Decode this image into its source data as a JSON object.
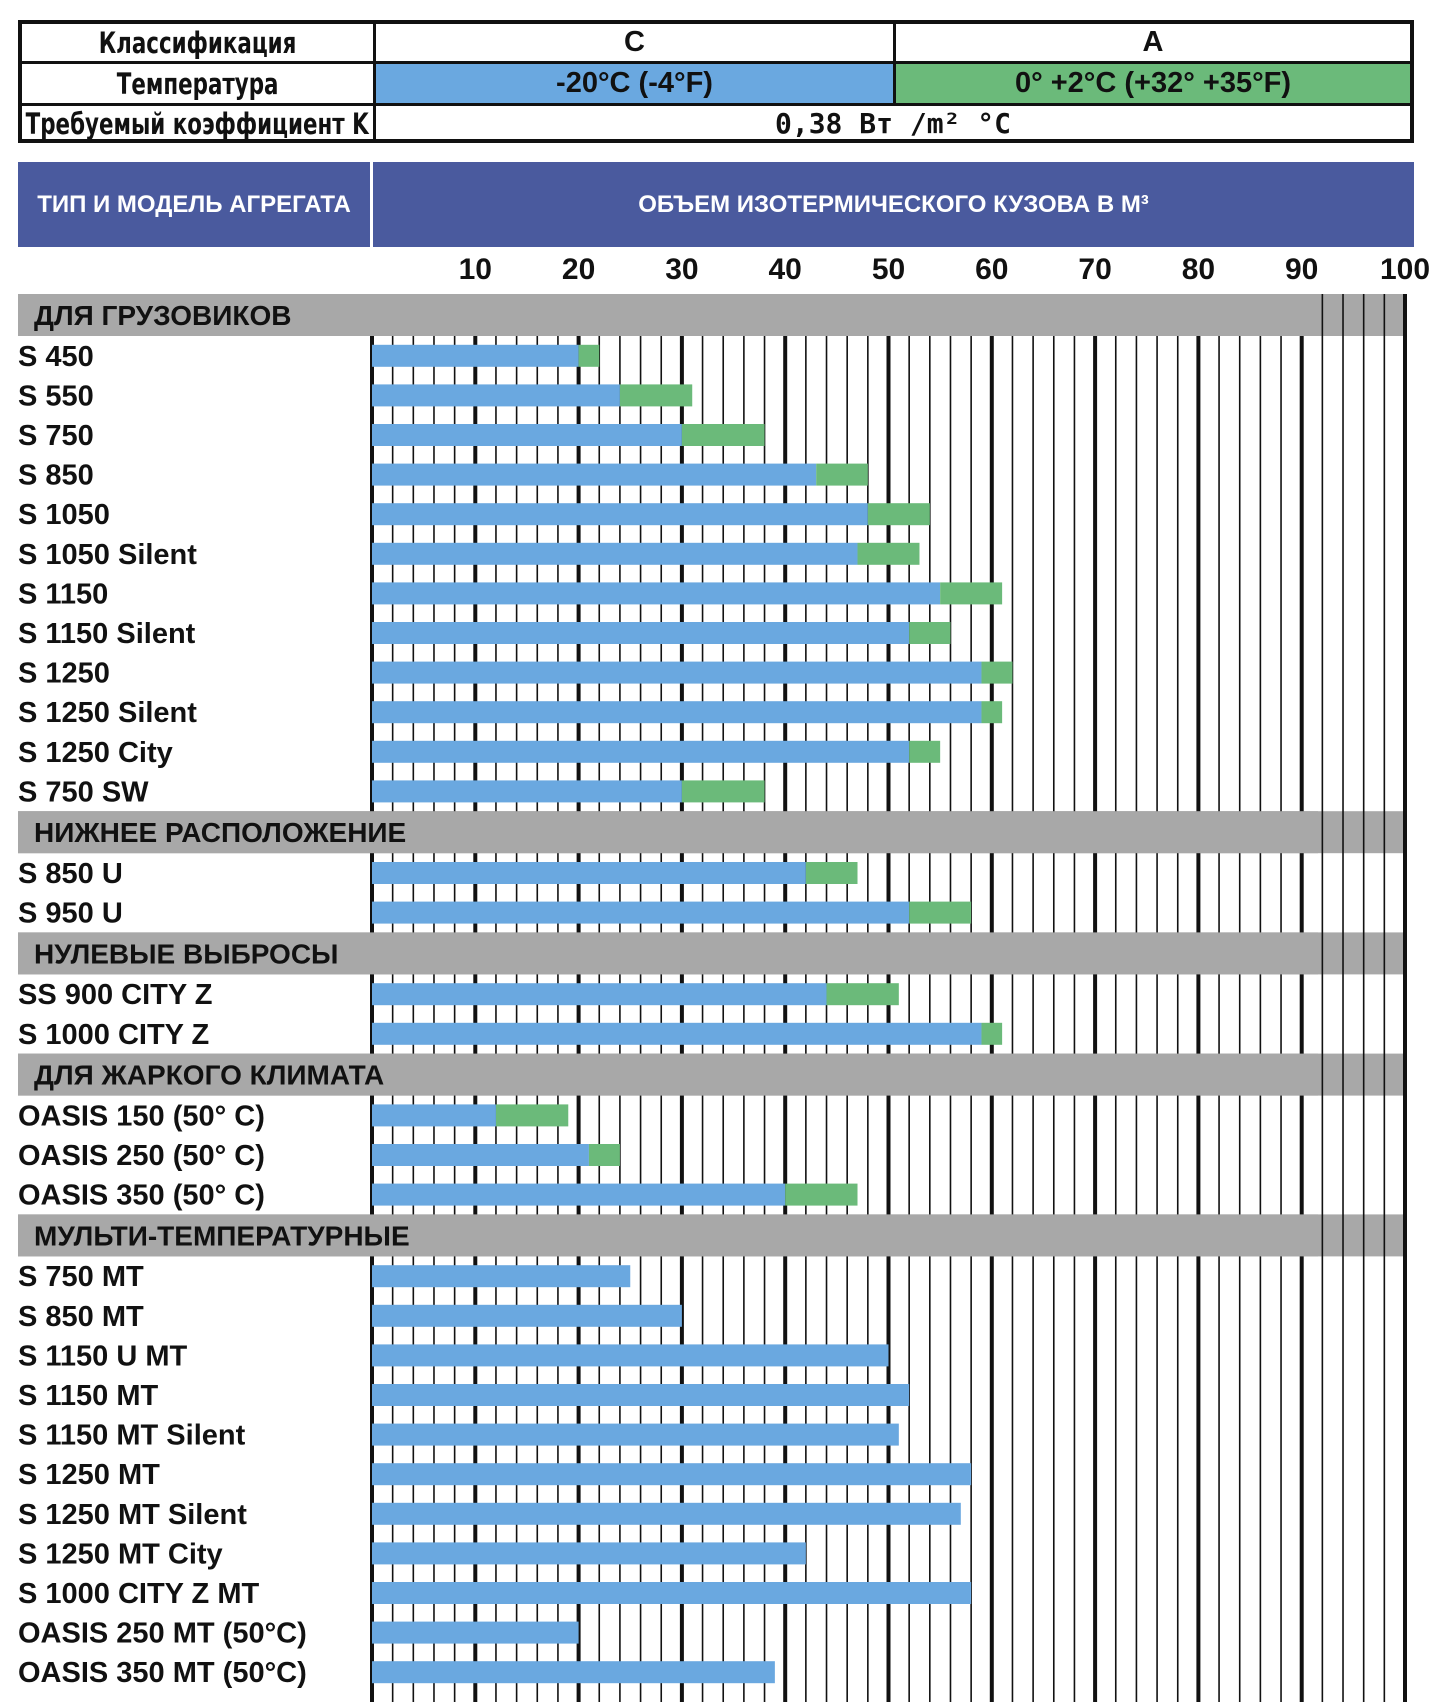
{
  "classification_table": {
    "row_classification": {
      "label": "Классификация",
      "c": "C",
      "a": "A"
    },
    "row_temperature": {
      "label": "Температура",
      "c": "-20°C (-4°F)",
      "a": "0° +2°C (+32° +35°F)"
    },
    "row_k": {
      "label": "Требуемый коэффициент K",
      "value": "0,38 Вт /m² °C"
    },
    "colors": {
      "c": "#6aa8e0",
      "a": "#6bba7a"
    }
  },
  "header": {
    "left": "ТИП И МОДЕЛЬ АГРЕГАТА",
    "right": "ОБЪЕМ ИЗОТЕРМИЧЕСКОГО КУЗОВА В М³",
    "color": "#4a5a9e"
  },
  "chart_data": {
    "type": "bar",
    "orientation": "horizontal",
    "stacked": true,
    "xlim": [
      0,
      100
    ],
    "x_ticks": [
      10,
      20,
      30,
      40,
      50,
      60,
      70,
      80,
      90,
      100
    ],
    "grid": true,
    "series": [
      {
        "name": "-20°C (-4°F)",
        "color": "#6aa8e0"
      },
      {
        "name": "0° +2°C (+32° +35°F)",
        "color": "#6bba7a"
      }
    ],
    "groups": [
      {
        "category": "ДЛЯ ГРУЗОВИКОВ",
        "rows": [
          {
            "label": "S 450",
            "c": 20,
            "a": 22
          },
          {
            "label": "S 550",
            "c": 24,
            "a": 31
          },
          {
            "label": "S 750",
            "c": 30,
            "a": 38
          },
          {
            "label": "S 850",
            "c": 43,
            "a": 48
          },
          {
            "label": "S 1050",
            "c": 48,
            "a": 54
          },
          {
            "label": "S 1050 Silent",
            "c": 47,
            "a": 53
          },
          {
            "label": "S 1150",
            "c": 55,
            "a": 61
          },
          {
            "label": "S 1150 Silent",
            "c": 52,
            "a": 56
          },
          {
            "label": "S 1250",
            "c": 59,
            "a": 62
          },
          {
            "label": "S 1250 Silent",
            "c": 59,
            "a": 61
          },
          {
            "label": "S 1250 City",
            "c": 52,
            "a": 55
          },
          {
            "label": "S 750 SW",
            "c": 30,
            "a": 38
          }
        ]
      },
      {
        "category": "НИЖНЕЕ РАСПОЛОЖЕНИЕ",
        "rows": [
          {
            "label": "S 850 U",
            "c": 42,
            "a": 47
          },
          {
            "label": "S 950 U",
            "c": 52,
            "a": 58
          }
        ]
      },
      {
        "category": "НУЛЕВЫЕ ВЫБРОСЫ",
        "rows": [
          {
            "label": "SS 900 CITY Z",
            "c": 44,
            "a": 51
          },
          {
            "label": "S 1000 CITY Z",
            "c": 59,
            "a": 61
          }
        ]
      },
      {
        "category": "ДЛЯ ЖАРКОГО КЛИМАТА",
        "rows": [
          {
            "label": "OASIS 150 (50° C)",
            "c": 12,
            "a": 19
          },
          {
            "label": "OASIS 250 (50° C)",
            "c": 21,
            "a": 24
          },
          {
            "label": "OASIS 350 (50° C)",
            "c": 40,
            "a": 47
          }
        ]
      },
      {
        "category": "МУЛЬТИ-ТЕМПЕРАТУРНЫЕ",
        "rows": [
          {
            "label": "S 750 MT",
            "c": 25,
            "a": null
          },
          {
            "label": "S 850 MT",
            "c": 30,
            "a": null
          },
          {
            "label": "S 1150 U MT",
            "c": 50,
            "a": null
          },
          {
            "label": "S 1150 MT",
            "c": 52,
            "a": null
          },
          {
            "label": "S 1150 MT Silent",
            "c": 51,
            "a": null
          },
          {
            "label": "S 1250 MT",
            "c": 58,
            "a": null
          },
          {
            "label": "S 1250 MT Silent",
            "c": 57,
            "a": null
          },
          {
            "label": "S 1250 MT City",
            "c": 42,
            "a": null
          },
          {
            "label": "S 1000 CITY Z MT",
            "c": 58,
            "a": null
          },
          {
            "label": "OASIS 250 MT (50°C)",
            "c": 20,
            "a": null
          },
          {
            "label": "OASIS 350 MT (50°C)",
            "c": 39,
            "a": null
          }
        ]
      }
    ]
  }
}
